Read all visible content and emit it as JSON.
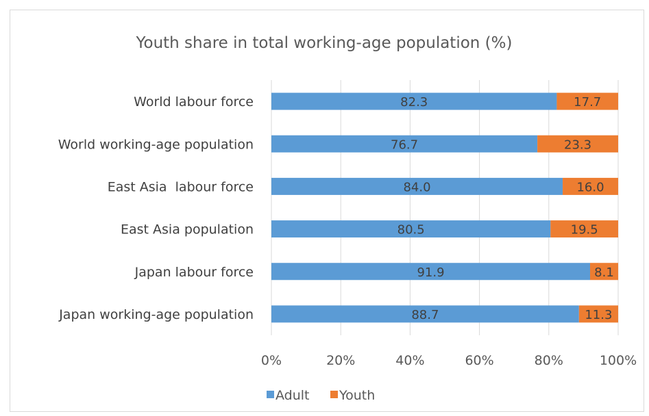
{
  "chart_data": {
    "type": "bar",
    "orientation": "horizontal",
    "stacked": true,
    "title": "Youth share in total working-age population (%)",
    "categories": [
      "World labour force",
      "World working-age population",
      "East Asia  labour force",
      "East Asia population",
      "Japan labour force",
      "Japan working-age population"
    ],
    "series": [
      {
        "name": "Adult",
        "color": "#5b9bd5",
        "values": [
          82.3,
          76.7,
          84.0,
          80.5,
          91.9,
          88.7
        ]
      },
      {
        "name": "Youth",
        "color": "#ed7d31",
        "values": [
          17.7,
          23.3,
          16.0,
          19.5,
          8.1,
          11.3
        ]
      }
    ],
    "xlim": [
      0,
      100
    ],
    "x_ticks": [
      "0%",
      "20%",
      "40%",
      "60%",
      "80%",
      "100%"
    ],
    "grid": true,
    "legend_position": "bottom"
  }
}
